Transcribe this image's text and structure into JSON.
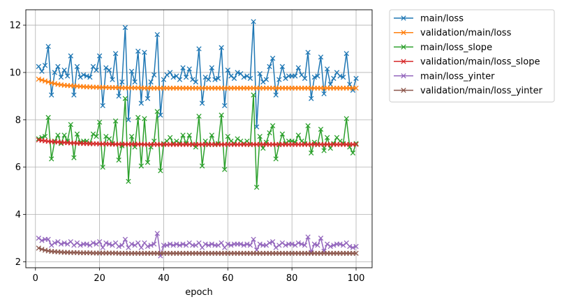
{
  "chart_data": {
    "type": "line",
    "title": "",
    "xlabel": "epoch",
    "ylabel": "",
    "xlim": [
      -3,
      105
    ],
    "ylim": [
      1.75,
      12.65
    ],
    "xticks": [
      0,
      20,
      40,
      60,
      80,
      100
    ],
    "yticks": [
      2,
      4,
      6,
      8,
      10,
      12
    ],
    "grid": true,
    "legend_position": "outside-upper-right",
    "marker": "x",
    "series": [
      {
        "name": "main/loss",
        "color": "#1f77b4",
        "x": [
          1,
          2,
          3,
          4,
          5,
          6,
          7,
          8,
          9,
          10,
          11,
          12,
          13,
          14,
          15,
          16,
          17,
          18,
          19,
          20,
          21,
          22,
          23,
          24,
          25,
          26,
          27,
          28,
          29,
          30,
          31,
          32,
          33,
          34,
          35,
          36,
          37,
          38,
          39,
          40,
          41,
          42,
          43,
          44,
          45,
          46,
          47,
          48,
          49,
          50,
          51,
          52,
          53,
          54,
          55,
          56,
          57,
          58,
          59,
          60,
          61,
          62,
          63,
          64,
          65,
          66,
          67,
          68,
          69,
          70,
          71,
          72,
          73,
          74,
          75,
          76,
          77,
          78,
          79,
          80,
          81,
          82,
          83,
          84,
          85,
          86,
          87,
          88,
          89,
          90,
          91,
          92,
          93,
          94,
          95,
          96,
          97,
          98,
          99,
          100
        ],
        "values": [
          10.25,
          10.05,
          10.3,
          11.1,
          9.05,
          10.0,
          10.25,
          9.8,
          10.1,
          9.85,
          10.7,
          9.05,
          10.25,
          9.8,
          9.9,
          9.85,
          9.8,
          10.25,
          10.1,
          10.7,
          8.6,
          10.2,
          10.1,
          9.7,
          10.8,
          9.0,
          9.6,
          11.9,
          8.0,
          10.05,
          9.6,
          10.9,
          8.7,
          10.85,
          8.9,
          9.6,
          9.9,
          11.6,
          8.2,
          9.7,
          9.9,
          10.0,
          9.8,
          9.85,
          9.7,
          10.2,
          9.8,
          10.15,
          9.7,
          9.6,
          11.0,
          8.7,
          9.8,
          9.7,
          10.2,
          9.7,
          9.75,
          11.05,
          8.6,
          10.1,
          9.85,
          9.75,
          10.0,
          9.95,
          9.8,
          9.85,
          9.75,
          12.15,
          7.7,
          9.95,
          9.6,
          9.7,
          10.25,
          10.6,
          9.05,
          9.7,
          10.25,
          9.75,
          9.85,
          9.85,
          9.85,
          10.2,
          9.9,
          9.75,
          10.85,
          8.9,
          9.8,
          9.85,
          10.65,
          9.1,
          10.15,
          9.5,
          9.75,
          10.0,
          9.85,
          9.8,
          10.8,
          9.5,
          9.25,
          9.75
        ]
      },
      {
        "name": "validation/main/loss",
        "color": "#ff7f0e",
        "x": [
          1,
          2,
          3,
          4,
          5,
          6,
          7,
          8,
          9,
          10,
          11,
          12,
          13,
          14,
          15,
          16,
          17,
          18,
          19,
          20,
          21,
          22,
          23,
          24,
          25,
          26,
          27,
          28,
          29,
          30,
          31,
          32,
          33,
          34,
          35,
          36,
          37,
          38,
          39,
          40,
          41,
          42,
          43,
          44,
          45,
          46,
          47,
          48,
          49,
          50,
          51,
          52,
          53,
          54,
          55,
          56,
          57,
          58,
          59,
          60,
          61,
          62,
          63,
          64,
          65,
          66,
          67,
          68,
          69,
          70,
          71,
          72,
          73,
          74,
          75,
          76,
          77,
          78,
          79,
          80,
          81,
          82,
          83,
          84,
          85,
          86,
          87,
          88,
          89,
          90,
          91,
          92,
          93,
          94,
          95,
          96,
          97,
          98,
          99,
          100
        ],
        "values": [
          9.72,
          9.68,
          9.64,
          9.6,
          9.56,
          9.53,
          9.5,
          9.48,
          9.46,
          9.45,
          9.44,
          9.43,
          9.42,
          9.41,
          9.4,
          9.39,
          9.39,
          9.38,
          9.38,
          9.37,
          9.37,
          9.37,
          9.36,
          9.36,
          9.36,
          9.36,
          9.35,
          9.35,
          9.35,
          9.35,
          9.35,
          9.35,
          9.35,
          9.34,
          9.34,
          9.34,
          9.34,
          9.34,
          9.34,
          9.34,
          9.34,
          9.34,
          9.34,
          9.34,
          9.34,
          9.34,
          9.34,
          9.34,
          9.34,
          9.34,
          9.34,
          9.34,
          9.34,
          9.34,
          9.34,
          9.34,
          9.34,
          9.34,
          9.34,
          9.34,
          9.34,
          9.34,
          9.34,
          9.34,
          9.34,
          9.34,
          9.34,
          9.34,
          9.34,
          9.34,
          9.34,
          9.34,
          9.34,
          9.34,
          9.34,
          9.34,
          9.34,
          9.34,
          9.34,
          9.34,
          9.34,
          9.34,
          9.34,
          9.34,
          9.34,
          9.34,
          9.34,
          9.34,
          9.34,
          9.34,
          9.34,
          9.34,
          9.34,
          9.34,
          9.34,
          9.34,
          9.34,
          9.34,
          9.34,
          9.34
        ]
      },
      {
        "name": "main/loss_slope",
        "color": "#2ca02c",
        "x": [
          1,
          2,
          3,
          4,
          5,
          6,
          7,
          8,
          9,
          10,
          11,
          12,
          13,
          14,
          15,
          16,
          17,
          18,
          19,
          20,
          21,
          22,
          23,
          24,
          25,
          26,
          27,
          28,
          29,
          30,
          31,
          32,
          33,
          34,
          35,
          36,
          37,
          38,
          39,
          40,
          41,
          42,
          43,
          44,
          45,
          46,
          47,
          48,
          49,
          50,
          51,
          52,
          53,
          54,
          55,
          56,
          57,
          58,
          59,
          60,
          61,
          62,
          63,
          64,
          65,
          66,
          67,
          68,
          69,
          70,
          71,
          72,
          73,
          74,
          75,
          76,
          77,
          78,
          79,
          80,
          81,
          82,
          83,
          84,
          85,
          86,
          87,
          88,
          89,
          90,
          91,
          92,
          93,
          94,
          95,
          96,
          97,
          98,
          99,
          100
        ],
        "values": [
          7.2,
          7.25,
          7.3,
          8.1,
          6.35,
          7.1,
          7.35,
          7.0,
          7.35,
          7.1,
          7.8,
          6.4,
          7.4,
          7.05,
          7.1,
          7.1,
          7.0,
          7.4,
          7.3,
          7.9,
          6.0,
          7.3,
          7.2,
          7.0,
          7.95,
          6.3,
          6.9,
          8.9,
          5.4,
          7.3,
          6.85,
          8.1,
          6.05,
          8.05,
          6.2,
          6.85,
          7.1,
          8.35,
          5.85,
          7.0,
          7.1,
          7.25,
          7.0,
          7.1,
          7.0,
          7.35,
          7.0,
          7.35,
          6.95,
          6.85,
          8.15,
          6.05,
          7.1,
          6.95,
          7.35,
          6.95,
          7.0,
          8.2,
          5.9,
          7.3,
          7.1,
          7.0,
          7.2,
          7.1,
          7.0,
          7.1,
          6.95,
          9.05,
          5.15,
          7.3,
          6.8,
          7.05,
          7.45,
          7.75,
          6.35,
          6.95,
          7.4,
          7.0,
          7.1,
          7.1,
          7.05,
          7.35,
          7.1,
          7.0,
          7.75,
          6.6,
          7.05,
          6.95,
          7.6,
          6.7,
          7.25,
          6.8,
          7.0,
          7.25,
          7.1,
          7.0,
          8.05,
          6.85,
          6.6,
          7.0
        ]
      },
      {
        "name": "validation/main/loss_slope",
        "color": "#d62728",
        "x": [
          1,
          2,
          3,
          4,
          5,
          6,
          7,
          8,
          9,
          10,
          11,
          12,
          13,
          14,
          15,
          16,
          17,
          18,
          19,
          20,
          21,
          22,
          23,
          24,
          25,
          26,
          27,
          28,
          29,
          30,
          31,
          32,
          33,
          34,
          35,
          36,
          37,
          38,
          39,
          40,
          41,
          42,
          43,
          44,
          45,
          46,
          47,
          48,
          49,
          50,
          51,
          52,
          53,
          54,
          55,
          56,
          57,
          58,
          59,
          60,
          61,
          62,
          63,
          64,
          65,
          66,
          67,
          68,
          69,
          70,
          71,
          72,
          73,
          74,
          75,
          76,
          77,
          78,
          79,
          80,
          81,
          82,
          83,
          84,
          85,
          86,
          87,
          88,
          89,
          90,
          91,
          92,
          93,
          94,
          95,
          96,
          97,
          98,
          99,
          100
        ],
        "values": [
          7.15,
          7.13,
          7.11,
          7.09,
          7.08,
          7.07,
          7.06,
          7.05,
          7.04,
          7.03,
          7.02,
          7.02,
          7.01,
          7.01,
          7.0,
          7.0,
          6.99,
          6.99,
          6.99,
          6.98,
          6.98,
          6.98,
          6.98,
          6.97,
          6.97,
          6.97,
          6.97,
          6.97,
          6.97,
          6.97,
          6.97,
          6.97,
          6.97,
          6.96,
          6.96,
          6.96,
          6.96,
          6.96,
          6.96,
          6.96,
          6.96,
          6.96,
          6.96,
          6.96,
          6.96,
          6.96,
          6.96,
          6.96,
          6.96,
          6.96,
          6.96,
          6.96,
          6.96,
          6.96,
          6.96,
          6.96,
          6.96,
          6.96,
          6.96,
          6.96,
          6.96,
          6.96,
          6.96,
          6.96,
          6.96,
          6.96,
          6.96,
          6.96,
          6.96,
          6.96,
          6.96,
          6.96,
          6.96,
          6.96,
          6.96,
          6.96,
          6.96,
          6.96,
          6.96,
          6.96,
          6.96,
          6.96,
          6.96,
          6.96,
          6.96,
          6.96,
          6.96,
          6.96,
          6.96,
          6.96,
          6.96,
          6.96,
          6.96,
          6.96,
          6.96,
          6.96,
          6.96,
          6.96,
          6.96,
          6.96
        ]
      },
      {
        "name": "main/loss_yinter",
        "color": "#9467bd",
        "x": [
          1,
          2,
          3,
          4,
          5,
          6,
          7,
          8,
          9,
          10,
          11,
          12,
          13,
          14,
          15,
          16,
          17,
          18,
          19,
          20,
          21,
          22,
          23,
          24,
          25,
          26,
          27,
          28,
          29,
          30,
          31,
          32,
          33,
          34,
          35,
          36,
          37,
          38,
          39,
          40,
          41,
          42,
          43,
          44,
          45,
          46,
          47,
          48,
          49,
          50,
          51,
          52,
          53,
          54,
          55,
          56,
          57,
          58,
          59,
          60,
          61,
          62,
          63,
          64,
          65,
          66,
          67,
          68,
          69,
          70,
          71,
          72,
          73,
          74,
          75,
          76,
          77,
          78,
          79,
          80,
          81,
          82,
          83,
          84,
          85,
          86,
          87,
          88,
          89,
          90,
          91,
          92,
          93,
          94,
          95,
          96,
          97,
          98,
          99,
          100
        ],
        "values": [
          3.0,
          2.9,
          2.95,
          2.95,
          2.7,
          2.8,
          2.85,
          2.75,
          2.8,
          2.75,
          2.85,
          2.7,
          2.8,
          2.7,
          2.75,
          2.75,
          2.7,
          2.8,
          2.75,
          2.85,
          2.6,
          2.8,
          2.75,
          2.7,
          2.8,
          2.65,
          2.7,
          2.95,
          2.6,
          2.75,
          2.7,
          2.8,
          2.6,
          2.8,
          2.65,
          2.7,
          2.75,
          3.2,
          2.25,
          2.7,
          2.7,
          2.75,
          2.7,
          2.75,
          2.7,
          2.75,
          2.7,
          2.8,
          2.7,
          2.7,
          2.8,
          2.6,
          2.75,
          2.7,
          2.75,
          2.7,
          2.7,
          2.8,
          2.6,
          2.75,
          2.7,
          2.75,
          2.75,
          2.75,
          2.7,
          2.75,
          2.7,
          2.95,
          2.5,
          2.75,
          2.7,
          2.7,
          2.8,
          2.85,
          2.6,
          2.7,
          2.8,
          2.7,
          2.75,
          2.75,
          2.7,
          2.8,
          2.75,
          2.7,
          3.05,
          2.4,
          2.75,
          2.7,
          3.0,
          2.45,
          2.75,
          2.65,
          2.7,
          2.75,
          2.75,
          2.7,
          2.8,
          2.65,
          2.6,
          2.65
        ]
      },
      {
        "name": "validation/main/loss_yinter",
        "color": "#8c564b",
        "x": [
          1,
          2,
          3,
          4,
          5,
          6,
          7,
          8,
          9,
          10,
          11,
          12,
          13,
          14,
          15,
          16,
          17,
          18,
          19,
          20,
          21,
          22,
          23,
          24,
          25,
          26,
          27,
          28,
          29,
          30,
          31,
          32,
          33,
          34,
          35,
          36,
          37,
          38,
          39,
          40,
          41,
          42,
          43,
          44,
          45,
          46,
          47,
          48,
          49,
          50,
          51,
          52,
          53,
          54,
          55,
          56,
          57,
          58,
          59,
          60,
          61,
          62,
          63,
          64,
          65,
          66,
          67,
          68,
          69,
          70,
          71,
          72,
          73,
          74,
          75,
          76,
          77,
          78,
          79,
          80,
          81,
          82,
          83,
          84,
          85,
          86,
          87,
          88,
          89,
          90,
          91,
          92,
          93,
          94,
          95,
          96,
          97,
          98,
          99,
          100
        ],
        "values": [
          2.58,
          2.53,
          2.49,
          2.46,
          2.44,
          2.43,
          2.42,
          2.41,
          2.4,
          2.4,
          2.39,
          2.39,
          2.39,
          2.38,
          2.38,
          2.38,
          2.38,
          2.37,
          2.37,
          2.37,
          2.37,
          2.37,
          2.37,
          2.37,
          2.37,
          2.36,
          2.36,
          2.36,
          2.36,
          2.36,
          2.36,
          2.36,
          2.36,
          2.36,
          2.36,
          2.36,
          2.36,
          2.36,
          2.36,
          2.36,
          2.36,
          2.36,
          2.36,
          2.36,
          2.36,
          2.36,
          2.36,
          2.36,
          2.36,
          2.36,
          2.36,
          2.36,
          2.36,
          2.36,
          2.36,
          2.36,
          2.36,
          2.36,
          2.36,
          2.36,
          2.36,
          2.36,
          2.36,
          2.36,
          2.36,
          2.36,
          2.36,
          2.36,
          2.36,
          2.36,
          2.36,
          2.36,
          2.36,
          2.36,
          2.36,
          2.36,
          2.36,
          2.36,
          2.36,
          2.36,
          2.36,
          2.36,
          2.36,
          2.36,
          2.36,
          2.36,
          2.36,
          2.36,
          2.36,
          2.36,
          2.36,
          2.36,
          2.36,
          2.36,
          2.36,
          2.36,
          2.36,
          2.36,
          2.36,
          2.36
        ]
      }
    ]
  }
}
